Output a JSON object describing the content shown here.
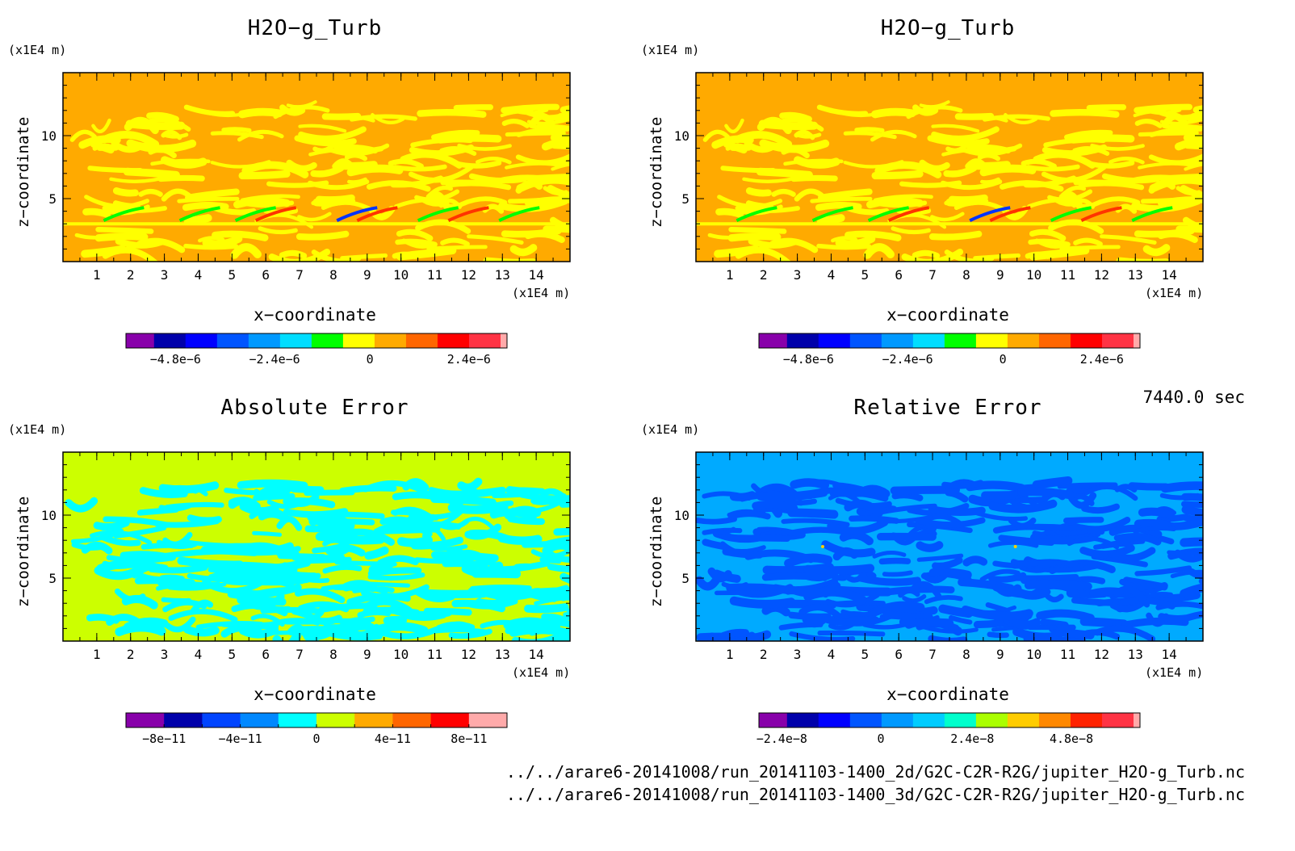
{
  "common": {
    "ylabel": "z−coordinate",
    "xlabel": "x−coordinate",
    "yunit": "(x1E4 m)",
    "xunit": "(x1E4 m)",
    "x_ticks": [
      1,
      2,
      3,
      4,
      5,
      6,
      7,
      8,
      9,
      10,
      11,
      12,
      13,
      14
    ],
    "y_ticks": [
      5,
      10
    ]
  },
  "timestamp": "7440.0 sec",
  "footer": {
    "line1": "../../arare6-20141008/run_20141103-1400_2d/G2C-C2R-R2G/jupiter_H2O-g_Turb.nc",
    "line2": "../../arare6-20141008/run_20141103-1400_3d/G2C-C2R-R2G/jupiter_H2O-g_Turb.nc"
  },
  "chart_data": [
    {
      "type": "heatmap",
      "title": "H2O−g_Turb",
      "xlabel": "x−coordinate",
      "ylabel": "z−coordinate",
      "xlim": [
        0,
        15
      ],
      "ylim": [
        0,
        15
      ],
      "background_level": "#ffaa00",
      "pattern_level": "#ffff00",
      "colorbar": {
        "colors": [
          "#8800aa",
          "#0000aa",
          "#0000ff",
          "#0055ff",
          "#0099ff",
          "#00ddff",
          "#00ff00",
          "#ffff00",
          "#ffaa00",
          "#ff6600",
          "#ff0000",
          "#ff3344",
          "#ffaaaa"
        ],
        "labels": [
          "−4.8e−6",
          "−2.4e−6",
          "0",
          "2.4e−6"
        ]
      }
    },
    {
      "type": "heatmap",
      "title": "H2O−g_Turb",
      "xlabel": "x−coordinate",
      "ylabel": "z−coordinate",
      "xlim": [
        0,
        15
      ],
      "ylim": [
        0,
        15
      ],
      "background_level": "#ffaa00",
      "pattern_level": "#ffff00",
      "colorbar": {
        "colors": [
          "#8800aa",
          "#0000aa",
          "#0000ff",
          "#0055ff",
          "#0099ff",
          "#00ddff",
          "#00ff00",
          "#ffff00",
          "#ffaa00",
          "#ff6600",
          "#ff0000",
          "#ff3344",
          "#ffaaaa"
        ],
        "labels": [
          "−4.8e−6",
          "−2.4e−6",
          "0",
          "2.4e−6"
        ]
      }
    },
    {
      "type": "heatmap",
      "title": "Absolute Error",
      "xlabel": "x−coordinate",
      "ylabel": "z−coordinate",
      "xlim": [
        0,
        15
      ],
      "ylim": [
        0,
        15
      ],
      "background_level": "#ccff00",
      "pattern_level": "#00ffff",
      "colorbar": {
        "colors": [
          "#8800aa",
          "#0000aa",
          "#0044ff",
          "#0088ff",
          "#00ffff",
          "#ccff00",
          "#ffaa00",
          "#ff6600",
          "#ff0000",
          "#ffaaaa"
        ],
        "labels": [
          "−8e−11",
          "−4e−11",
          "0",
          "4e−11",
          "8e−11"
        ]
      }
    },
    {
      "type": "heatmap",
      "title": "Relative Error",
      "xlabel": "x−coordinate",
      "ylabel": "z−coordinate",
      "xlim": [
        0,
        15
      ],
      "ylim": [
        0,
        15
      ],
      "background_level": "#00aaff",
      "pattern_level": "#0055ff",
      "colorbar": {
        "colors": [
          "#8800aa",
          "#0000aa",
          "#0000ff",
          "#0055ff",
          "#0099ff",
          "#00ccff",
          "#00ffcc",
          "#aaff00",
          "#ffcc00",
          "#ff8800",
          "#ff2200",
          "#ff3344",
          "#ffaaaa"
        ],
        "labels": [
          "−2.4e−8",
          "0",
          "2.4e−8",
          "4.8e−8"
        ]
      }
    }
  ]
}
